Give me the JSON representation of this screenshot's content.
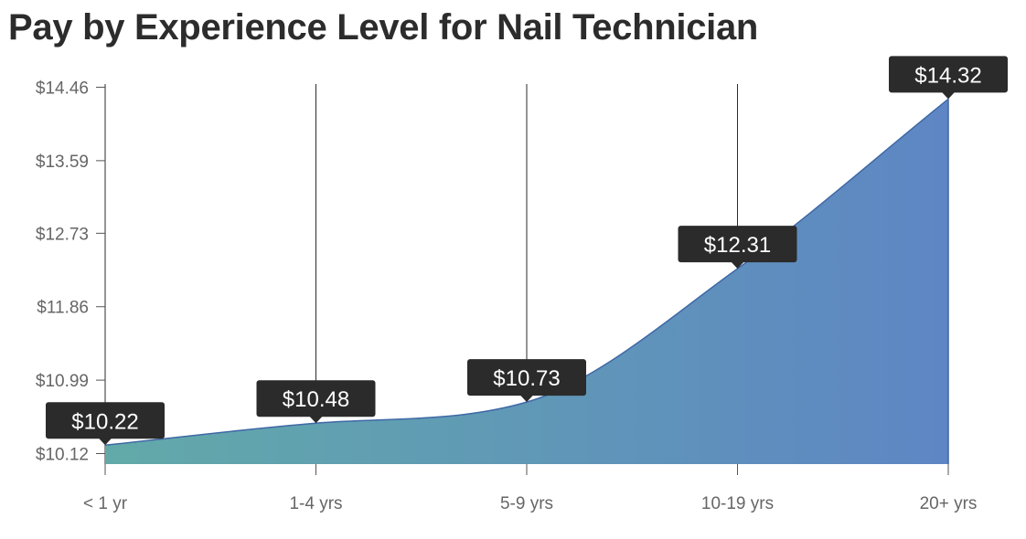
{
  "chart_data": {
    "type": "area",
    "title": "Pay by Experience Level for Nail Technician",
    "xlabel": "",
    "ylabel": "",
    "categories": [
      "< 1 yr",
      "1-4 yrs",
      "5-9 yrs",
      "10-19 yrs",
      "20+ yrs"
    ],
    "values": [
      10.22,
      10.48,
      10.73,
      12.31,
      14.32
    ],
    "data_labels": [
      "$10.22",
      "$10.48",
      "$10.73",
      "$12.31",
      "$14.32"
    ],
    "y_ticks": [
      {
        "value": 10.12,
        "label": "$10.12"
      },
      {
        "value": 10.99,
        "label": "$10.99"
      },
      {
        "value": 11.86,
        "label": "$11.86"
      },
      {
        "value": 12.73,
        "label": "$12.73"
      },
      {
        "value": 13.59,
        "label": "$13.59"
      },
      {
        "value": 14.46,
        "label": "$14.46"
      }
    ],
    "ylim": [
      9.99,
      14.46
    ],
    "grid": "vertical",
    "legend": "none",
    "colors": {
      "fill_start": "#62aaa9",
      "fill_end": "#5e86c4",
      "stroke": "#3f68a6",
      "label_bg": "#2b2b2b",
      "label_text": "#ffffff",
      "grid": "#2b2b2b",
      "tick_text": "#666666",
      "title_text": "#2c2c2c"
    }
  }
}
